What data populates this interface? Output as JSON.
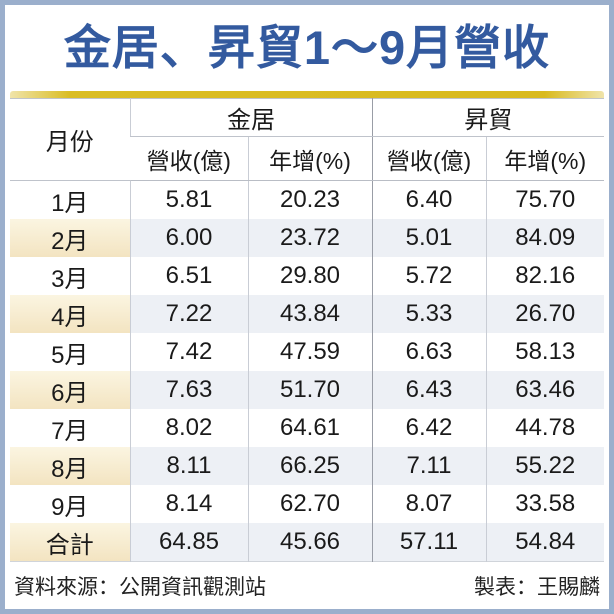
{
  "title": "金居、昇貿1～9月營收",
  "colors": {
    "title_blue": "#335a9f",
    "accent_gold": "#d9ba1f",
    "frame_blue": "#9bafcc",
    "month_cream": "#f6e9cc",
    "row_tint": "#edf0f5"
  },
  "chart_data": {
    "type": "table",
    "title": "金居、昇貿1～9月營收",
    "column_groups": [
      {
        "label": "金居",
        "span": 2
      },
      {
        "label": "昇貿",
        "span": 2
      }
    ],
    "columns": [
      "月份",
      "營收(億)",
      "年增(%)",
      "營收(億)",
      "年增(%)"
    ],
    "rows": [
      [
        "1月",
        "5.81",
        "20.23",
        "6.40",
        "75.70"
      ],
      [
        "2月",
        "6.00",
        "23.72",
        "5.01",
        "84.09"
      ],
      [
        "3月",
        "6.51",
        "29.80",
        "5.72",
        "82.16"
      ],
      [
        "4月",
        "7.22",
        "43.84",
        "5.33",
        "26.70"
      ],
      [
        "5月",
        "7.42",
        "47.59",
        "6.63",
        "58.13"
      ],
      [
        "6月",
        "7.63",
        "51.70",
        "6.43",
        "63.46"
      ],
      [
        "7月",
        "8.02",
        "64.61",
        "6.42",
        "44.78"
      ],
      [
        "8月",
        "8.11",
        "66.25",
        "7.11",
        "55.22"
      ],
      [
        "9月",
        "8.14",
        "62.70",
        "8.07",
        "33.58"
      ],
      [
        "合計",
        "64.85",
        "45.66",
        "57.11",
        "54.84"
      ]
    ],
    "total_row_label": "合計"
  },
  "footer": {
    "source": "資料來源：公開資訊觀測站",
    "credit": "製表：王賜麟"
  }
}
